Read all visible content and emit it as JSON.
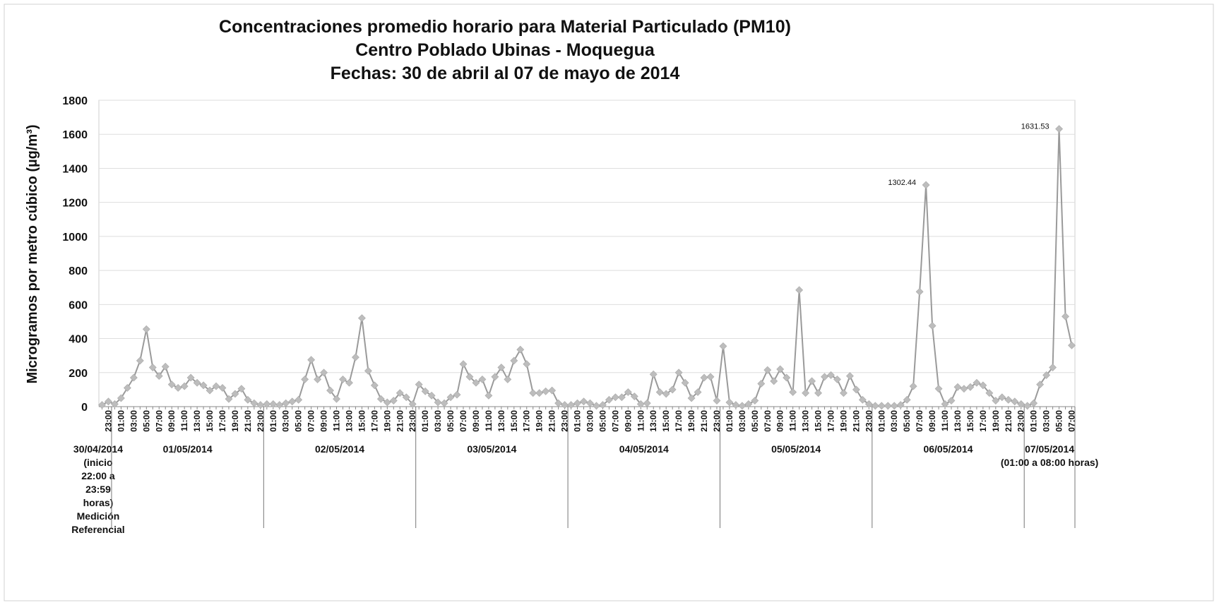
{
  "chart_data": {
    "type": "line",
    "title": [
      "Concentraciones promedio horario para Material Particulado (PM10)",
      "Centro Poblado Ubinas - Moquegua",
      "Fechas: 30 de abril al 07 de mayo de 2014"
    ],
    "ylabel": "Microgramos por metro cúbico (µg/m³)",
    "ylim": [
      0,
      1800
    ],
    "yticks": [
      0,
      200,
      400,
      600,
      800,
      1000,
      1200,
      1400,
      1600,
      1800
    ],
    "grid": true,
    "color": "#9a9a9a",
    "marker_color": "#bdbdbd",
    "categories": [
      null,
      "23:00",
      null,
      "01:00",
      null,
      "03:00",
      null,
      "05:00",
      null,
      "07:00",
      null,
      "09:00",
      null,
      "11:00",
      null,
      "13:00",
      null,
      "15:00",
      null,
      "17:00",
      null,
      "19:00",
      null,
      "21:00",
      null,
      "23:00",
      null,
      "01:00",
      null,
      "03:00",
      null,
      "05:00",
      null,
      "07:00",
      null,
      "09:00",
      null,
      "11:00",
      null,
      "13:00",
      null,
      "15:00",
      null,
      "17:00",
      null,
      "19:00",
      null,
      "21:00",
      null,
      "23:00",
      null,
      "01:00",
      null,
      "03:00",
      null,
      "05:00",
      null,
      "07:00",
      null,
      "09:00",
      null,
      "11:00",
      null,
      "13:00",
      null,
      "15:00",
      null,
      "17:00",
      null,
      "19:00",
      null,
      "21:00",
      null,
      "23:00",
      null,
      "01:00",
      null,
      "03:00",
      null,
      "05:00",
      null,
      "07:00",
      null,
      "09:00",
      null,
      "11:00",
      null,
      "13:00",
      null,
      "15:00",
      null,
      "17:00",
      null,
      "19:00",
      null,
      "21:00",
      null,
      "23:00",
      null,
      "01:00",
      null,
      "03:00",
      null,
      "05:00",
      null,
      "07:00",
      null,
      "09:00",
      null,
      "11:00",
      null,
      "13:00",
      null,
      "15:00",
      null,
      "17:00",
      null,
      "19:00",
      null,
      "21:00",
      null,
      "23:00",
      null,
      "01:00",
      null,
      "03:00",
      null,
      "05:00",
      null,
      "07:00",
      null,
      "09:00",
      null,
      "11:00",
      null,
      "13:00",
      null,
      "15:00",
      null,
      "17:00",
      null,
      "19:00",
      null,
      "21:00",
      null,
      "23:00",
      null,
      "01:00",
      null,
      "03:00",
      null,
      "05:00",
      null,
      "07:00"
    ],
    "values": [
      10,
      30,
      15,
      50,
      110,
      170,
      270,
      455,
      230,
      180,
      235,
      130,
      110,
      120,
      170,
      140,
      125,
      95,
      120,
      110,
      45,
      75,
      105,
      40,
      20,
      10,
      15,
      15,
      10,
      20,
      30,
      40,
      160,
      275,
      160,
      200,
      95,
      45,
      160,
      140,
      290,
      520,
      210,
      125,
      45,
      25,
      35,
      80,
      55,
      15,
      130,
      90,
      65,
      25,
      20,
      55,
      70,
      250,
      175,
      140,
      160,
      65,
      175,
      230,
      160,
      270,
      335,
      250,
      80,
      80,
      90,
      95,
      20,
      10,
      10,
      20,
      30,
      20,
      5,
      10,
      40,
      55,
      55,
      85,
      60,
      15,
      20,
      190,
      85,
      75,
      100,
      200,
      140,
      50,
      85,
      170,
      175,
      35,
      355,
      25,
      10,
      5,
      15,
      35,
      135,
      215,
      150,
      220,
      170,
      85,
      685,
      80,
      150,
      80,
      175,
      185,
      160,
      80,
      180,
      100,
      40,
      15,
      5,
      5,
      5,
      5,
      10,
      40,
      120,
      675,
      1302.44,
      475,
      105,
      15,
      35,
      115,
      105,
      115,
      140,
      125,
      80,
      35,
      55,
      40,
      30,
      15,
      5,
      20,
      130,
      185,
      230,
      1631.53,
      530,
      360
    ],
    "value_labels": [
      null,
      null,
      null,
      null,
      null,
      null,
      null,
      null,
      null,
      null,
      null,
      null,
      null,
      null,
      null,
      null,
      null,
      null,
      null,
      null,
      null,
      null,
      null,
      null,
      null,
      null,
      null,
      null,
      null,
      null,
      null,
      null,
      null,
      null,
      null,
      null,
      null,
      null,
      null,
      null,
      null,
      null,
      null,
      null,
      null,
      null,
      null,
      null,
      null,
      null,
      null,
      null,
      null,
      null,
      null,
      null,
      null,
      null,
      null,
      null,
      null,
      null,
      null,
      null,
      null,
      null,
      null,
      null,
      null,
      null,
      null,
      null,
      null,
      null,
      null,
      null,
      null,
      null,
      null,
      null,
      null,
      null,
      null,
      null,
      null,
      null,
      null,
      null,
      null,
      null,
      null,
      null,
      null,
      null,
      null,
      null,
      null,
      null,
      null,
      null,
      null,
      null,
      null,
      null,
      null,
      null,
      null,
      null,
      null,
      null,
      null,
      null,
      null,
      null,
      null,
      null,
      null,
      null,
      null,
      null,
      null,
      null,
      null,
      null,
      null,
      null,
      null,
      null,
      null,
      null,
      "1302.44",
      null,
      null,
      null,
      null,
      null,
      null,
      null,
      null,
      null,
      null,
      null,
      null,
      null,
      null,
      null,
      null,
      null,
      null,
      null,
      null,
      "1631.53",
      null,
      null
    ],
    "groups": [
      {
        "label": [
          "30/04/2014",
          "(inicio",
          "22:00 a",
          "23:59",
          "horas)",
          "Medición",
          "Referencial"
        ],
        "count": 2
      },
      {
        "label": [
          "01/05/2014"
        ],
        "count": 24
      },
      {
        "label": [
          "02/05/2014"
        ],
        "count": 24
      },
      {
        "label": [
          "03/05/2014"
        ],
        "count": 24
      },
      {
        "label": [
          "04/05/2014"
        ],
        "count": 24
      },
      {
        "label": [
          "05/05/2014"
        ],
        "count": 24
      },
      {
        "label": [
          "06/05/2014"
        ],
        "count": 24
      },
      {
        "label": [
          "07/05/2014",
          "(01:00 a 08:00 horas)"
        ],
        "count": 8
      }
    ]
  }
}
